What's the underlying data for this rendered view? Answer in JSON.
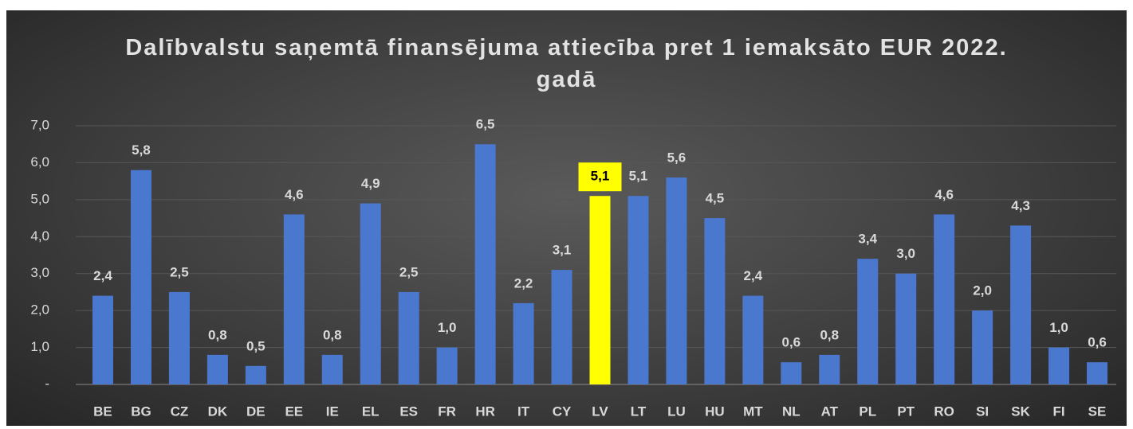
{
  "chart_data": {
    "type": "bar",
    "title": "Dalībvalstu saņemtā finansējuma attiecība pret 1 iemaksāto EUR 2022. gadā",
    "categories": [
      "BE",
      "BG",
      "CZ",
      "DK",
      "DE",
      "EE",
      "IE",
      "EL",
      "ES",
      "FR",
      "HR",
      "IT",
      "CY",
      "LV",
      "LT",
      "LU",
      "HU",
      "MT",
      "NL",
      "AT",
      "PL",
      "PT",
      "RO",
      "SI",
      "SK",
      "FI",
      "SE"
    ],
    "values": [
      2.4,
      5.8,
      2.5,
      0.8,
      0.5,
      4.6,
      0.8,
      4.9,
      2.5,
      1.0,
      6.5,
      2.2,
      3.1,
      5.1,
      5.1,
      5.6,
      4.5,
      2.4,
      0.6,
      0.8,
      3.4,
      3.0,
      4.6,
      2.0,
      4.3,
      1.0,
      0.6
    ],
    "value_labels": [
      "2,4",
      "5,8",
      "2,5",
      "0,8",
      "0,5",
      "4,6",
      "0,8",
      "4,9",
      "2,5",
      "1,0",
      "6,5",
      "2,2",
      "3,1",
      "5,1",
      "5,1",
      "5,6",
      "4,5",
      "2,4",
      "0,6",
      "0,8",
      "3,4",
      "3,0",
      "4,6",
      "2,0",
      "4,3",
      "1,0",
      "0,6"
    ],
    "color": "#4a78cf",
    "colors": [
      "#4a78cf",
      "#4a78cf",
      "#4a78cf",
      "#4a78cf",
      "#4a78cf",
      "#4a78cf",
      "#4a78cf",
      "#4a78cf",
      "#4a78cf",
      "#4a78cf",
      "#4a78cf",
      "#4a78cf",
      "#4a78cf",
      "#ffff00",
      "#4a78cf",
      "#4a78cf",
      "#4a78cf",
      "#4a78cf",
      "#4a78cf",
      "#4a78cf",
      "#4a78cf",
      "#4a78cf",
      "#4a78cf",
      "#4a78cf",
      "#4a78cf",
      "#4a78cf",
      "#4a78cf"
    ],
    "ylim": [
      0,
      7
    ],
    "yticks": [
      {
        "value": 0,
        "label": "-"
      },
      {
        "value": 1,
        "label": "1,0"
      },
      {
        "value": 2,
        "label": "2,0"
      },
      {
        "value": 3,
        "label": "3,0"
      },
      {
        "value": 4,
        "label": "4,0"
      },
      {
        "value": 5,
        "label": "5,0"
      },
      {
        "value": 6,
        "label": "6,0"
      },
      {
        "value": 7,
        "label": "7,0"
      }
    ],
    "grid": true
  }
}
